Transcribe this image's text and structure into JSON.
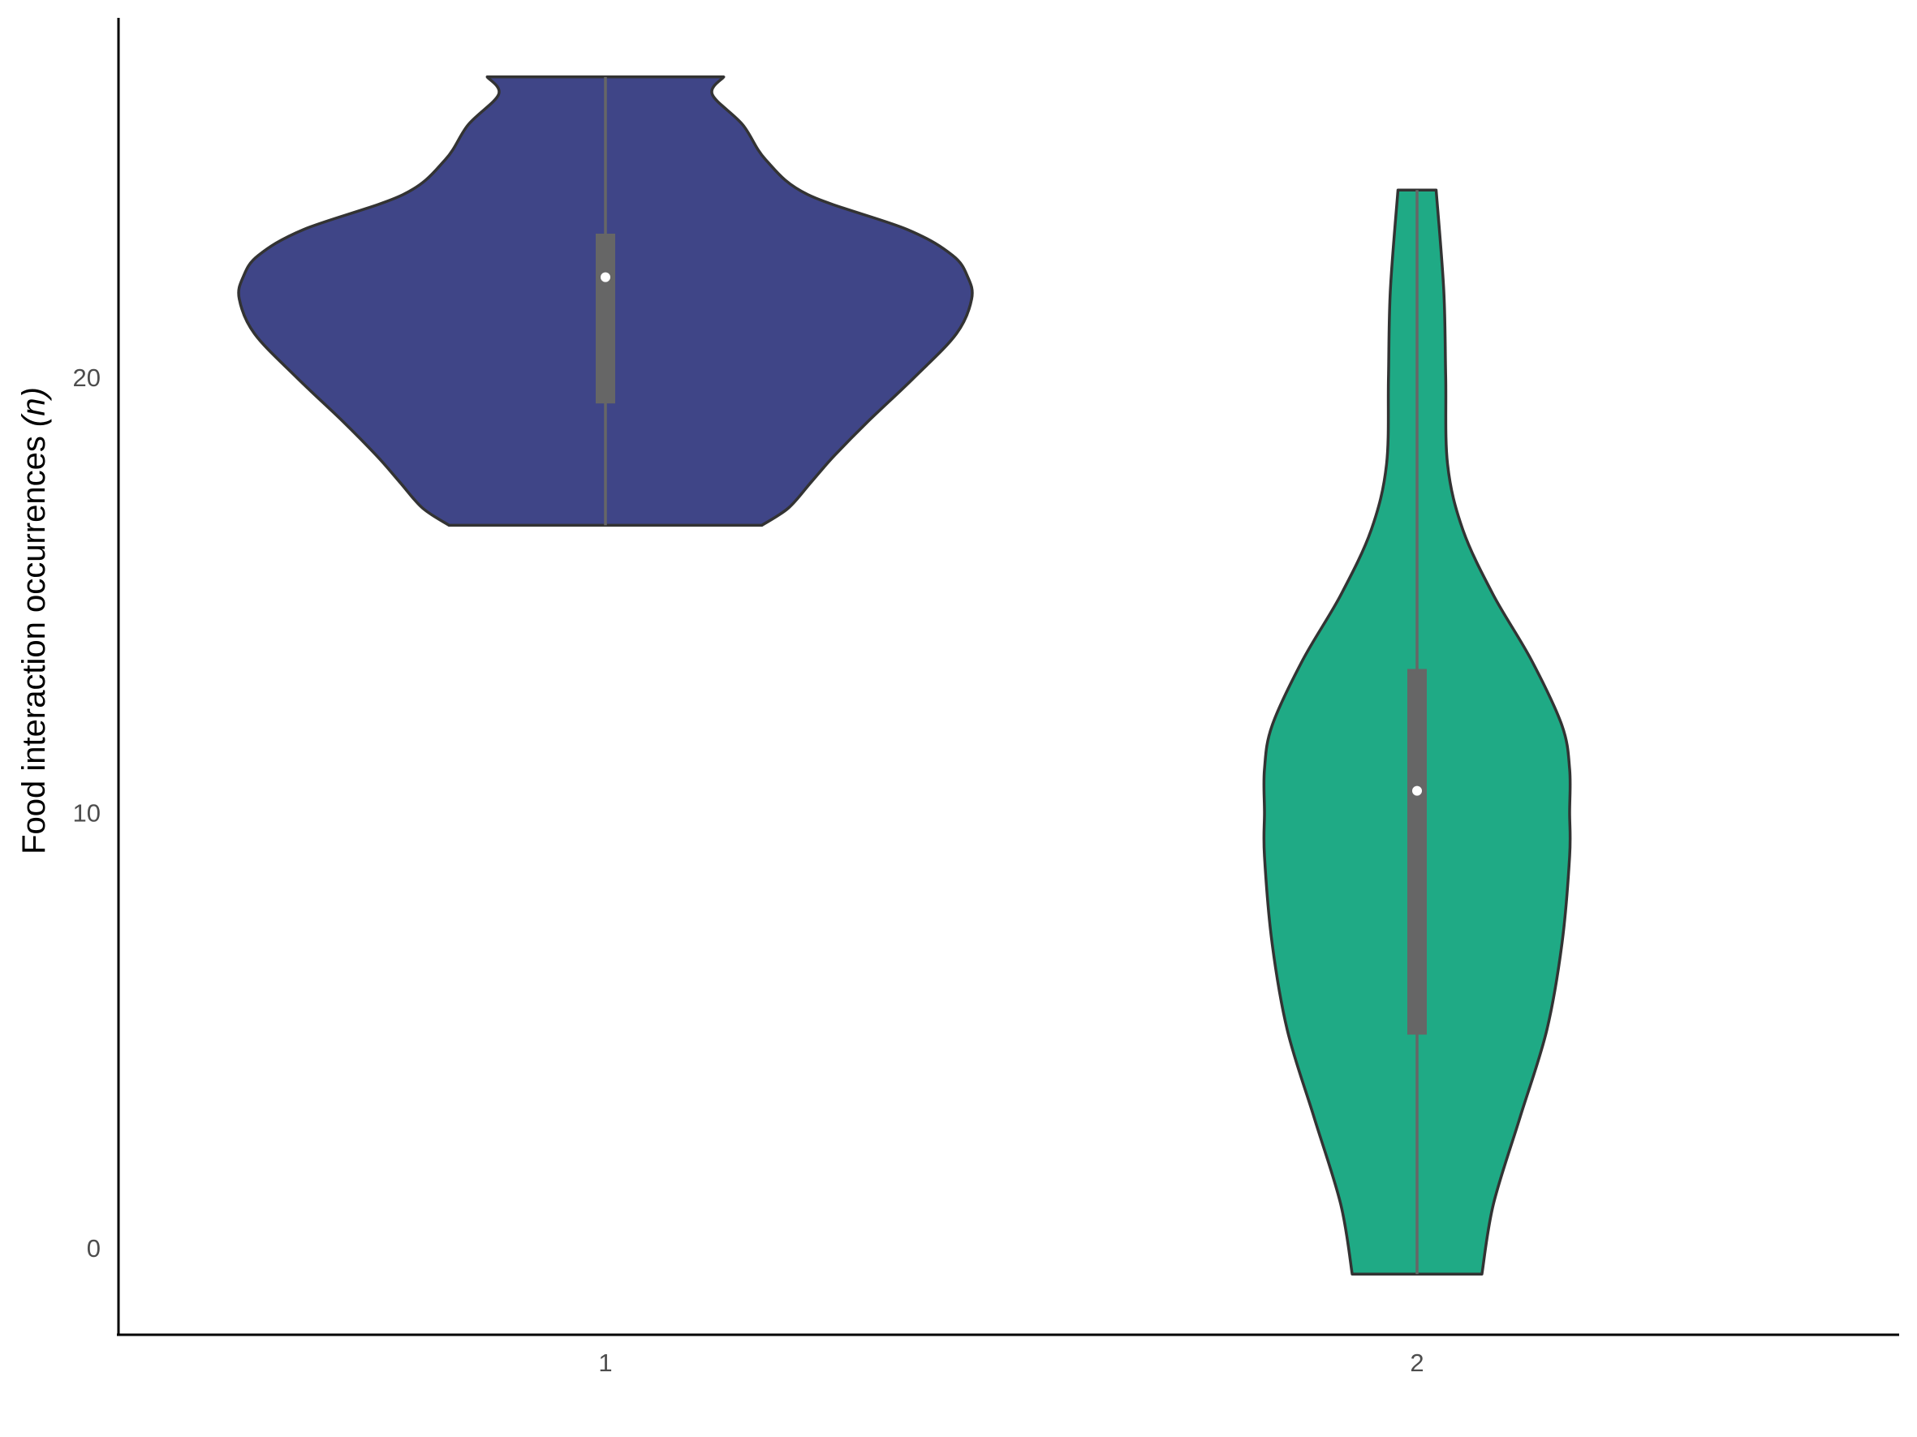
{
  "chart_data": {
    "type": "violin",
    "title": "",
    "ylabel_main": "Food interaction occurrences ",
    "ylabel_italic": "(n)",
    "xlabel": "",
    "categories": [
      "1",
      "2"
    ],
    "ylim": [
      -2,
      27.5
    ],
    "yticks": [
      "0",
      "10",
      "20"
    ],
    "ytick_values": [
      0,
      10,
      20
    ],
    "grid": false,
    "legend": "none",
    "colors": {
      "1": "#3f4587",
      "2": "#1faa85",
      "outline": "#333333",
      "box": "#666666",
      "median": "#ffffff"
    },
    "violins": [
      {
        "category": "1",
        "min": 16.6,
        "max": 26.9,
        "q1": 19.4,
        "median": 22.3,
        "q3": 23.3,
        "density_width": [
          [
            16.6,
            0.41
          ],
          [
            17.0,
            0.48
          ],
          [
            17.6,
            0.54
          ],
          [
            18.2,
            0.6
          ],
          [
            19.0,
            0.69
          ],
          [
            20.0,
            0.81
          ],
          [
            21.0,
            0.92
          ],
          [
            21.8,
            0.96
          ],
          [
            22.3,
            0.95
          ],
          [
            22.8,
            0.91
          ],
          [
            23.4,
            0.79
          ],
          [
            24.2,
            0.53
          ],
          [
            25.0,
            0.42
          ],
          [
            25.8,
            0.36
          ],
          [
            26.5,
            0.28
          ],
          [
            26.9,
            0.31
          ]
        ]
      },
      {
        "category": "2",
        "min": -0.6,
        "max": 24.3,
        "q1": 4.9,
        "median": 10.5,
        "q3": 13.3,
        "density_width": [
          [
            -0.6,
            0.17
          ],
          [
            1.0,
            0.2
          ],
          [
            3.0,
            0.27
          ],
          [
            5.0,
            0.34
          ],
          [
            7.0,
            0.38
          ],
          [
            9.0,
            0.4
          ],
          [
            10.0,
            0.4
          ],
          [
            11.0,
            0.4
          ],
          [
            12.0,
            0.38
          ],
          [
            13.5,
            0.3
          ],
          [
            15.0,
            0.2
          ],
          [
            16.5,
            0.12
          ],
          [
            18.0,
            0.08
          ],
          [
            20.0,
            0.075
          ],
          [
            22.0,
            0.07
          ],
          [
            24.3,
            0.05
          ]
        ]
      }
    ]
  }
}
